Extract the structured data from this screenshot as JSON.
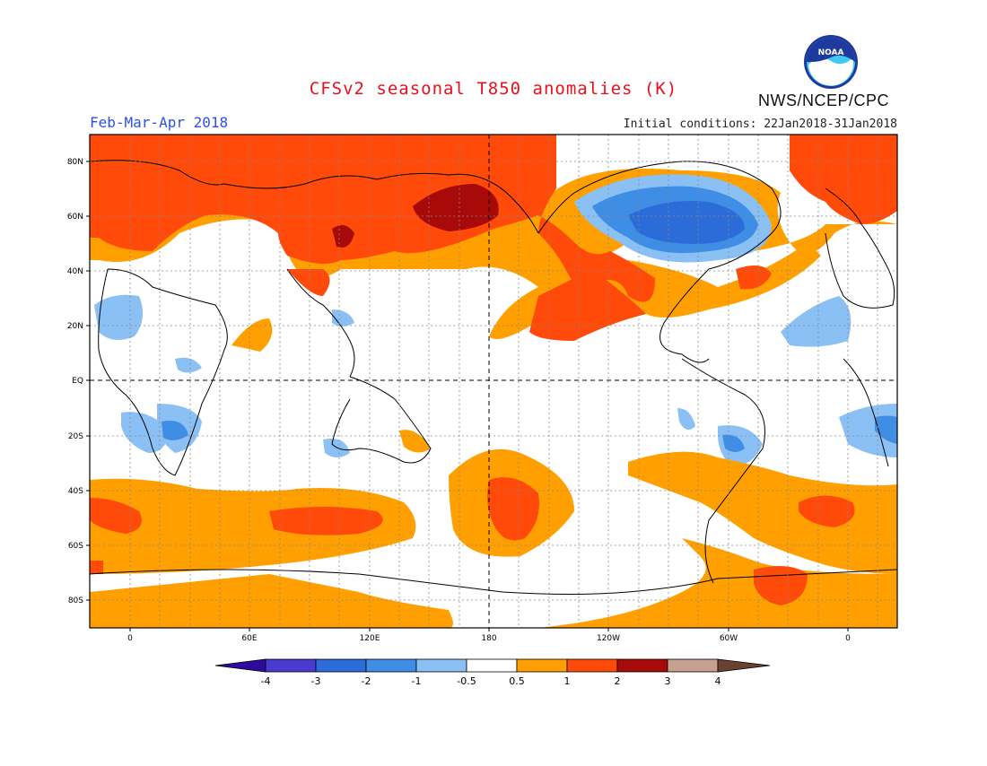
{
  "header": {
    "title": "CFSv2 seasonal T850 anomalies (K)",
    "period": "Feb-Mar-Apr 2018",
    "initial_conditions": "Initial conditions: 22Jan2018-31Jan2018",
    "agency": "NWS/NCEP/CPC",
    "logo_text": "NOAA"
  },
  "map": {
    "lat_labels": [
      "80N",
      "60N",
      "40N",
      "20N",
      "EQ",
      "20S",
      "40S",
      "60S",
      "80S"
    ],
    "lon_labels": [
      "0",
      "60E",
      "120E",
      "180",
      "120W",
      "60W",
      "0"
    ]
  },
  "legend": {
    "labels": [
      "-4",
      "-3",
      "-2",
      "-1",
      "-0.5",
      "0.5",
      "1",
      "2",
      "3",
      "4"
    ],
    "colors": [
      "#2e0a9e",
      "#4a3ad0",
      "#2c6cd8",
      "#3f8ee6",
      "#8ac0f4",
      "#ffffff",
      "#ffa000",
      "#ff4a0a",
      "#a80a0a",
      "#c8a090",
      "#6a4030"
    ]
  },
  "colors": {
    "title": "#e8101c",
    "period": "#2b52e6",
    "warm1": "#ffa000",
    "warm2": "#ff4a0a",
    "warm3": "#a80a0a",
    "cold1": "#8ac0f4",
    "cold2": "#3f8ee6",
    "cold3": "#2c6cd8"
  }
}
